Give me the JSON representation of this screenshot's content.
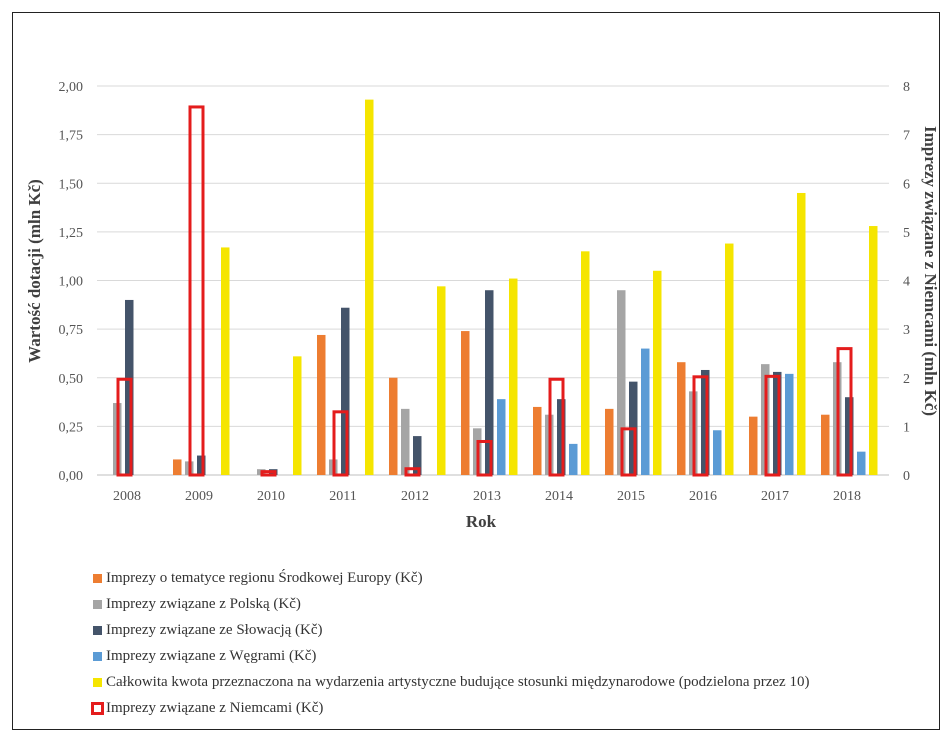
{
  "chart_data": {
    "type": "bar",
    "xlabel": "Rok",
    "ylabel": "Wartość dotacji (mln Kč)",
    "y2label": "Imprezy związane z Niemcami (mln Kč)",
    "categories": [
      "2008",
      "2009",
      "2010",
      "2011",
      "2012",
      "2013",
      "2014",
      "2015",
      "2016",
      "2017",
      "2018"
    ],
    "ylim": [
      0,
      2
    ],
    "y2lim": [
      0,
      8
    ],
    "yticks": [
      "0,00",
      "0,25",
      "0,50",
      "0,75",
      "1,00",
      "1,25",
      "1,50",
      "1,75",
      "2,00"
    ],
    "y2ticks": [
      "0",
      "1",
      "2",
      "3",
      "4",
      "5",
      "6",
      "7",
      "8"
    ],
    "grid": true,
    "legend_position": "bottom",
    "series": [
      {
        "name": "Imprezy o tematyce regionu Środkowej Europy (Kč)",
        "color": "#ed7d31",
        "axis": "left",
        "style": "fill",
        "values": [
          0,
          0.08,
          0,
          0.72,
          0.5,
          0.74,
          0.35,
          0.34,
          0.58,
          0.3,
          0.31
        ]
      },
      {
        "name": "Imprezy związane z Polską (Kč)",
        "color": "#a5a5a5",
        "axis": "left",
        "style": "fill",
        "values": [
          0.37,
          0.07,
          0.03,
          0.08,
          0.34,
          0.24,
          0.31,
          0.95,
          0.43,
          0.57,
          0.58
        ]
      },
      {
        "name": "Imprezy związane ze Słowacją  (Kč)",
        "color": "#44546a",
        "axis": "left",
        "style": "fill",
        "values": [
          0.9,
          0.1,
          0.03,
          0.86,
          0.2,
          0.95,
          0.39,
          0.48,
          0.54,
          0.53,
          0.4
        ]
      },
      {
        "name": "Imprezy związane z Węgrami (Kč)",
        "color": "#5b9bd5",
        "axis": "left",
        "style": "fill",
        "values": [
          0,
          0,
          0,
          0,
          0,
          0.39,
          0.16,
          0.65,
          0.23,
          0.52,
          0.12
        ]
      },
      {
        "name": "Całkowita kwota przeznaczona na wydarzenia artystyczne budujące stosunki międzynarodowe (podzielona przez 10)",
        "color": "#f5e500",
        "axis": "left",
        "style": "fill",
        "values": [
          0,
          1.17,
          0.61,
          1.93,
          0.97,
          1.01,
          1.15,
          1.05,
          1.19,
          1.45,
          1.28
        ]
      },
      {
        "name": "Imprezy związane z Niemcami (Kč)",
        "color": "#e41c1c",
        "axis": "right",
        "style": "outline",
        "values": [
          2.0,
          7.6,
          0.1,
          1.33,
          0.16,
          0.72,
          2.0,
          0.98,
          2.05,
          2.06,
          2.63
        ]
      }
    ]
  }
}
